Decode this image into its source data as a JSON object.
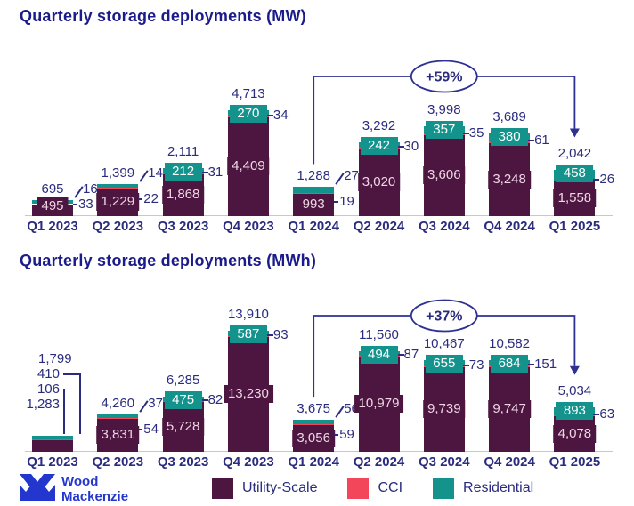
{
  "titles": {
    "chart1": "Quarterly storage deployments (MW)",
    "chart2": "Quarterly storage deployments (MWh)"
  },
  "legend": {
    "items": [
      {
        "label": "Utility-Scale",
        "color": "#4c1640"
      },
      {
        "label": "CCI",
        "color": "#f4465a"
      },
      {
        "label": "Residential",
        "color": "#14938d"
      }
    ]
  },
  "logo": {
    "line1": "Wood",
    "line2": "Mackenzie"
  },
  "colors": {
    "title_navy": "#1b1b8a",
    "number_navy": "#2b2c7e",
    "arrow_navy": "#2e3192",
    "utility": "#4c1640",
    "cci": "#f4465a",
    "residential": "#14938d",
    "axis_line": "#c8c8c8",
    "logo_blue": "#2337ce"
  },
  "chart_data": [
    {
      "type": "bar",
      "stacked": true,
      "title": "Quarterly storage deployments (MW)",
      "unit": "MW",
      "xlabel": "",
      "ylabel": "",
      "ylim": [
        0,
        5000
      ],
      "grid": false,
      "legend_position": "bottom",
      "categories": [
        "Q1 2023",
        "Q2 2023",
        "Q3 2023",
        "Q4 2023",
        "Q1 2024",
        "Q2 2024",
        "Q3 2024",
        "Q4 2024",
        "Q1 2025"
      ],
      "series": [
        {
          "name": "Utility-Scale",
          "color": "#4c1640",
          "values": [
            495,
            1229,
            1868,
            4409,
            993,
            3020,
            3606,
            3248,
            1558
          ]
        },
        {
          "name": "CCI",
          "color": "#f4465a",
          "values": [
            33,
            22,
            31,
            34,
            19,
            30,
            35,
            61,
            26
          ]
        },
        {
          "name": "Residential",
          "color": "#14938d",
          "values": [
            167,
            148,
            212,
            270,
            276,
            242,
            357,
            380,
            458
          ]
        }
      ],
      "totals": [
        695,
        1399,
        2111,
        4713,
        1288,
        3292,
        3998,
        3689,
        2042
      ],
      "annotation": {
        "text": "+59%",
        "from_category": "Q1 2024",
        "to_category": "Q1 2025"
      },
      "label_modes": [
        "slash",
        "slash",
        "chip",
        "chip",
        "slash",
        "chip",
        "chip",
        "chip",
        "chip"
      ]
    },
    {
      "type": "bar",
      "stacked": true,
      "title": "Quarterly storage deployments (MWh)",
      "unit": "MWh",
      "xlabel": "",
      "ylabel": "",
      "ylim": [
        0,
        15000
      ],
      "grid": false,
      "legend_position": "bottom",
      "categories": [
        "Q1 2023",
        "Q2 2023",
        "Q3 2023",
        "Q4 2023",
        "Q1 2024",
        "Q2 2024",
        "Q3 2024",
        "Q4 2024",
        "Q1 2025"
      ],
      "series": [
        {
          "name": "Utility-Scale",
          "color": "#4c1640",
          "values": [
            1283,
            3831,
            5728,
            13230,
            3056,
            10979,
            9739,
            9747,
            4078
          ]
        },
        {
          "name": "CCI",
          "color": "#f4465a",
          "values": [
            106,
            54,
            82,
            93,
            59,
            87,
            73,
            151,
            63
          ]
        },
        {
          "name": "Residential",
          "color": "#14938d",
          "values": [
            410,
            375,
            475,
            587,
            560,
            494,
            655,
            684,
            893
          ]
        }
      ],
      "totals": [
        1799,
        4260,
        6285,
        13910,
        3675,
        11560,
        10467,
        10582,
        5034
      ],
      "annotation": {
        "text": "+37%",
        "from_category": "Q1 2024",
        "to_category": "Q1 2025"
      },
      "label_modes": [
        "stack",
        "slash",
        "chip",
        "chip",
        "slash",
        "chip",
        "chip",
        "chip",
        "chip"
      ]
    }
  ]
}
